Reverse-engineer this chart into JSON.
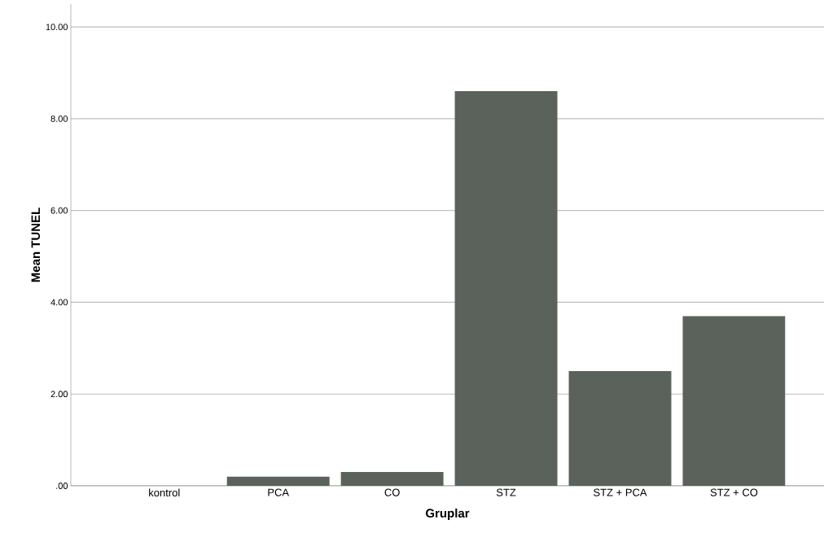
{
  "chart_data": {
    "type": "bar",
    "xlabel": "Gruplar",
    "ylabel": "Mean TUNEL",
    "categories": [
      "kontrol",
      "PCA",
      "CO",
      "STZ",
      "STZ + PCA",
      "STZ + CO"
    ],
    "values": [
      0,
      0.2,
      0.3,
      8.6,
      2.5,
      3.7
    ],
    "color": "#5a625b",
    "ylim": [
      0,
      10.5
    ],
    "yticks": [
      {
        "value": 0,
        "label": ".00"
      },
      {
        "value": 2,
        "label": "2.00"
      },
      {
        "value": 4,
        "label": "4.00"
      },
      {
        "value": 6,
        "label": "6.00"
      },
      {
        "value": 8,
        "label": "8.00"
      },
      {
        "value": 10,
        "label": "10.00"
      }
    ],
    "grid": "y"
  }
}
